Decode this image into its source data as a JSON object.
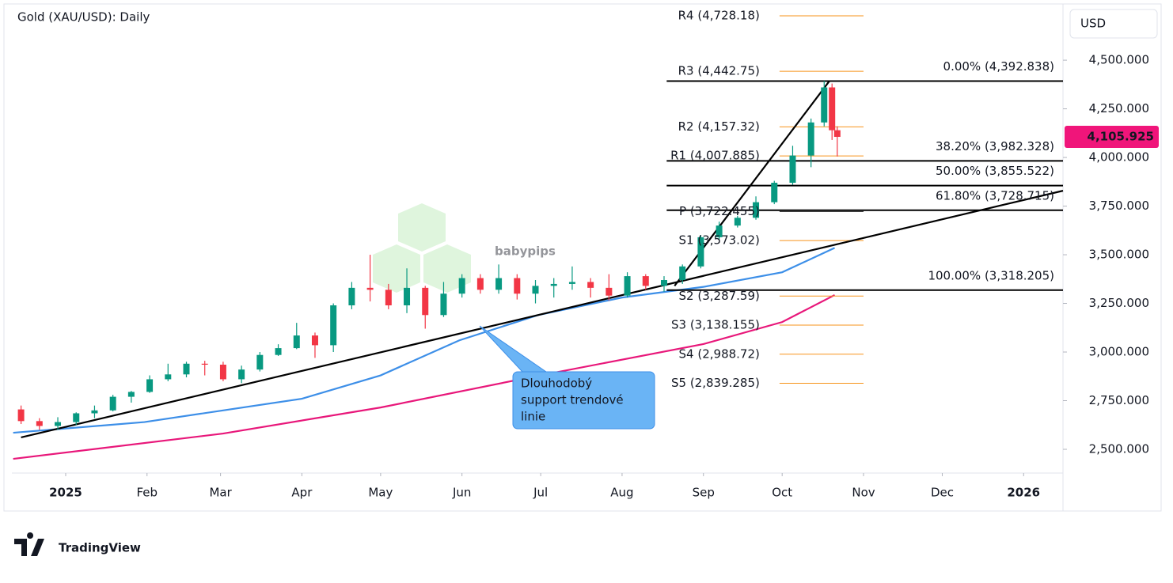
{
  "chart_data": {
    "type": "candlestick",
    "title": "Gold (XAU/USD): Daily",
    "currency": "USD",
    "watermark": "babypips",
    "brand": "TradingView",
    "xlim": [
      -20.5,
      380
    ],
    "ylim": [
      2378,
      4789
    ],
    "xticks": [
      {
        "value": 0,
        "label": "2025"
      },
      {
        "value": 31,
        "label": "Feb"
      },
      {
        "value": 59,
        "label": "Mar"
      },
      {
        "value": 90,
        "label": "Apr"
      },
      {
        "value": 120,
        "label": "May"
      },
      {
        "value": 151,
        "label": "Jun"
      },
      {
        "value": 181,
        "label": "Jul"
      },
      {
        "value": 212,
        "label": "Aug"
      },
      {
        "value": 243,
        "label": "Sep"
      },
      {
        "value": 273,
        "label": "Oct"
      },
      {
        "value": 304,
        "label": "Nov"
      },
      {
        "value": 334,
        "label": "Dec"
      },
      {
        "value": 365,
        "label": "2026"
      }
    ],
    "yticks": [
      {
        "value": 2500,
        "label": "2,500.000"
      },
      {
        "value": 2750,
        "label": "2,750.000"
      },
      {
        "value": 3000,
        "label": "3,000.000"
      },
      {
        "value": 3250,
        "label": "3,250.000"
      },
      {
        "value": 3500,
        "label": "3,500.000"
      },
      {
        "value": 3750,
        "label": "3,750.000"
      },
      {
        "value": 4000,
        "label": "4,000.000"
      },
      {
        "value": 4250,
        "label": "4,250.000"
      },
      {
        "value": 4500,
        "label": "4,500.000"
      }
    ],
    "up_color": "#089981",
    "down_color": "#f23645",
    "candles": {
      "x": [
        -17,
        -10,
        -3,
        4,
        11,
        18,
        25,
        32,
        39,
        46,
        53,
        60,
        67,
        74,
        81,
        88,
        95,
        102,
        109,
        116,
        123,
        130,
        137,
        144,
        151,
        158,
        165,
        172,
        179,
        186,
        193,
        200,
        207,
        214,
        221,
        228,
        235,
        242,
        249,
        256,
        263,
        270,
        277,
        284,
        289,
        292,
        294
      ],
      "open": [
        2705,
        2645,
        2620,
        2640,
        2685,
        2700,
        2770,
        2795,
        2860,
        2885,
        2940,
        2935,
        2860,
        2910,
        2985,
        3020,
        3085,
        3035,
        3240,
        3330,
        3320,
        3240,
        3330,
        3190,
        3300,
        3380,
        3320,
        3380,
        3300,
        3340,
        3350,
        3360,
        3330,
        3290,
        3390,
        3340,
        3370,
        3440,
        3590,
        3650,
        3690,
        3770,
        3870,
        4010,
        4180,
        4360,
        4140
      ],
      "high": [
        2725,
        2660,
        2665,
        2690,
        2725,
        2780,
        2800,
        2880,
        2940,
        2950,
        2955,
        2950,
        2930,
        3000,
        3040,
        3150,
        3100,
        3250,
        3360,
        3500,
        3350,
        3430,
        3340,
        3360,
        3400,
        3400,
        3450,
        3400,
        3370,
        3380,
        3440,
        3380,
        3400,
        3410,
        3400,
        3390,
        3450,
        3600,
        3670,
        3700,
        3800,
        3880,
        4060,
        4200,
        4392.838,
        4380,
        4160
      ],
      "low": [
        2630,
        2600,
        2600,
        2625,
        2660,
        2695,
        2740,
        2790,
        2850,
        2870,
        2880,
        2850,
        2840,
        2900,
        2980,
        3015,
        2970,
        3000,
        3220,
        3260,
        3220,
        3200,
        3120,
        3180,
        3280,
        3300,
        3300,
        3270,
        3250,
        3280,
        3320,
        3280,
        3265,
        3280,
        3320,
        3310,
        3350,
        3430,
        3580,
        3640,
        3680,
        3760,
        3860,
        3950,
        4160,
        4090,
        4005
      ],
      "close": [
        2645,
        2620,
        2640,
        2685,
        2700,
        2770,
        2795,
        2860,
        2885,
        2940,
        2935,
        2860,
        2910,
        2985,
        3020,
        3085,
        3035,
        3240,
        3330,
        3320,
        3240,
        3330,
        3190,
        3300,
        3380,
        3320,
        3380,
        3300,
        3340,
        3350,
        3360,
        3330,
        3290,
        3390,
        3340,
        3370,
        3440,
        3590,
        3650,
        3690,
        3770,
        3870,
        4010,
        4180,
        4360,
        4140,
        4105.925
      ]
    },
    "last_price": {
      "value": 4105.925,
      "label": "4,105.925",
      "color": "#f0157a"
    },
    "moving_averages": [
      {
        "color": "#3d8fe8",
        "x": [
          -20,
          30,
          60,
          90,
          120,
          150,
          180,
          212,
          243,
          273,
          293
        ],
        "values": [
          2585,
          2640,
          2700,
          2760,
          2880,
          3060,
          3190,
          3280,
          3335,
          3410,
          3535
        ]
      },
      {
        "color": "#e8177a",
        "x": [
          -20,
          60,
          120,
          180,
          243,
          273,
          293
        ],
        "values": [
          2451,
          2581,
          2715,
          2878,
          3041,
          3154,
          3293
        ]
      }
    ],
    "trendlines": [
      {
        "color": "#000000",
        "x": [
          -17,
          380
        ],
        "values": [
          2561,
          3829
        ]
      },
      {
        "color": "#000000",
        "x": [
          232,
          291
        ],
        "values": [
          3340,
          4392.838
        ]
      }
    ],
    "fib_x": [
      229,
      380
    ],
    "fib_levels": [
      {
        "label": "0.00% (4,392.838)",
        "value": 4392.838
      },
      {
        "label": "38.20% (3,982.328)",
        "value": 3982.328
      },
      {
        "label": "50.00% (3,855.522)",
        "value": 3855.522
      },
      {
        "label": "61.80% (3,728.715)",
        "value": 3728.715
      },
      {
        "label": "100.00% (3,318.205)",
        "value": 3318.205
      }
    ],
    "pivot_x": [
      272,
      304
    ],
    "pivots": [
      {
        "label": "R4 (4,728.18)",
        "value": 4728.18,
        "color": "#f7931a"
      },
      {
        "label": "R3 (4,442.75)",
        "value": 4442.75,
        "color": "#f7931a"
      },
      {
        "label": "R2 (4,157.32)",
        "value": 4157.32,
        "color": "#f7931a"
      },
      {
        "label": "R1 (4,007.885)",
        "value": 4007.885,
        "color": "#f7931a"
      },
      {
        "label": "P (3,722.455)",
        "value": 3722.455,
        "color": "#222222"
      },
      {
        "label": "S1 (3,573.02)",
        "value": 3573.02,
        "color": "#f7931a"
      },
      {
        "label": "S2 (3,287.59)",
        "value": 3287.59,
        "color": "#f7931a"
      },
      {
        "label": "S3 (3,138.155)",
        "value": 3138.155,
        "color": "#f7931a"
      },
      {
        "label": "S4 (2,988.72)",
        "value": 2988.72,
        "color": "#f7931a"
      },
      {
        "label": "S5 (2,839.285)",
        "value": 2839.285,
        "color": "#f7931a"
      }
    ],
    "annotation": {
      "lines": [
        "Dlouhodobý",
        "support trendové",
        "linie"
      ]
    }
  }
}
